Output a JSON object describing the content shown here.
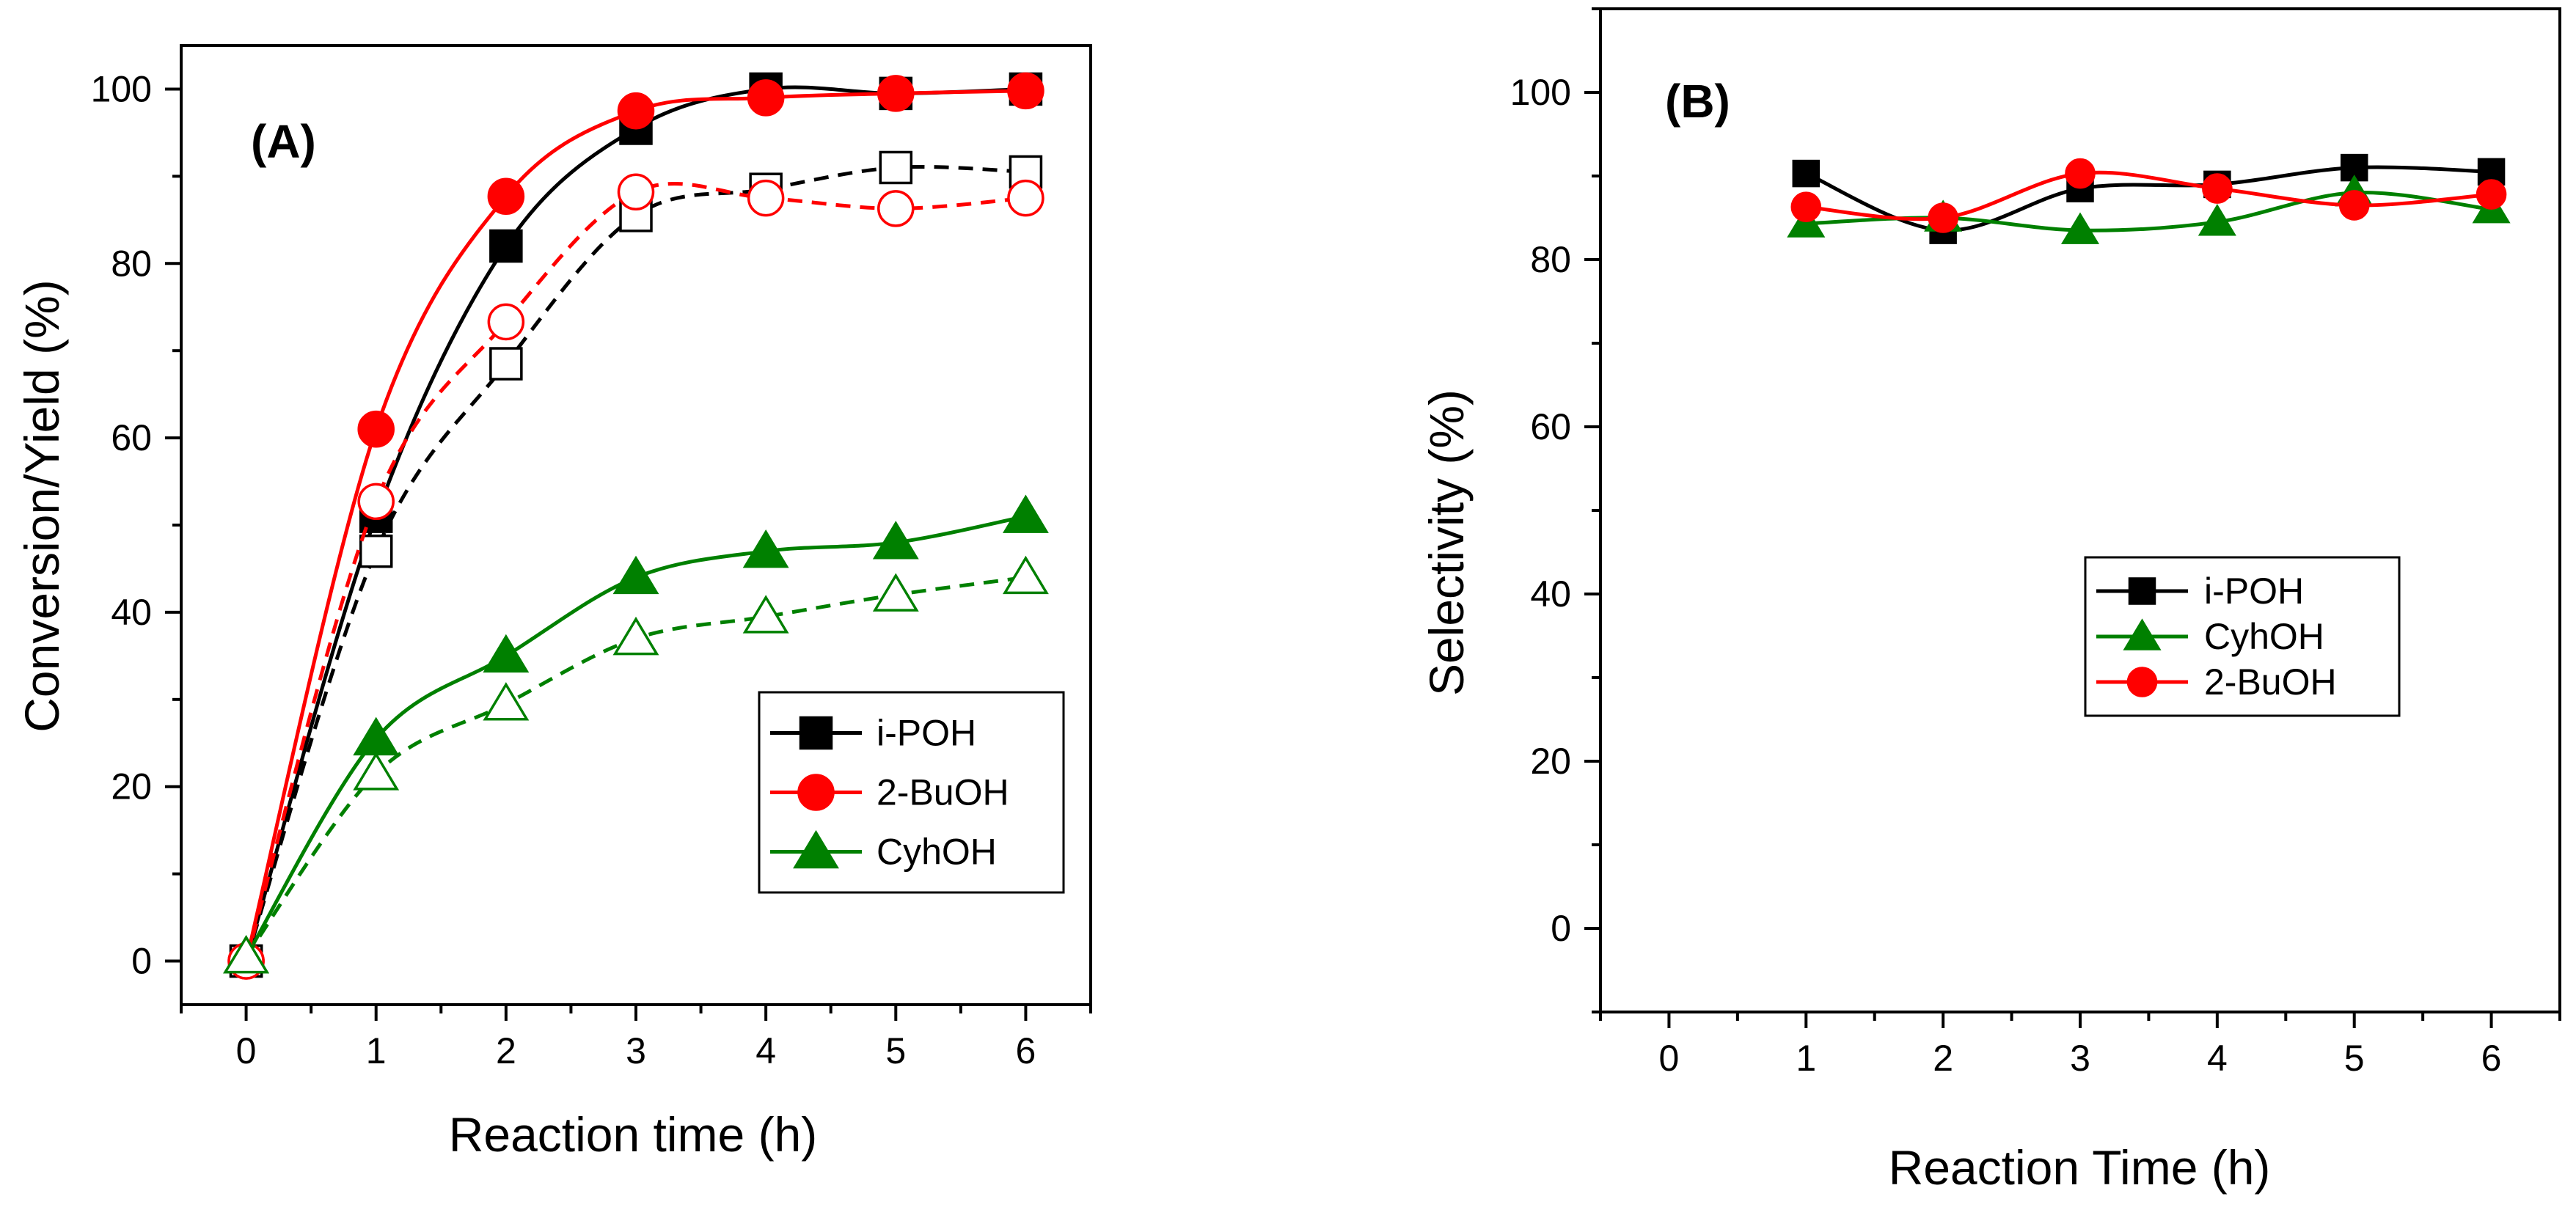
{
  "chart_data": [
    {
      "type": "line",
      "panel_label": "(A)",
      "title": "",
      "xlabel": "Reaction time (h)",
      "ylabel": "Conversion/Yield (%)",
      "xlim": [
        -0.5,
        6.5
      ],
      "ylim": [
        -5,
        105
      ],
      "xticks": [
        "0",
        "1",
        "2",
        "3",
        "4",
        "5",
        "6"
      ],
      "yticks": [
        "0",
        "20",
        "40",
        "60",
        "80",
        "100"
      ],
      "grid": false,
      "legend_position": "lower-right",
      "x": [
        0,
        1,
        2,
        3,
        4,
        5,
        6
      ],
      "series": [
        {
          "name": "i-POH",
          "legend": true,
          "color": "#000000",
          "marker": "square",
          "filled": true,
          "dash": false,
          "values": [
            0,
            51,
            82,
            95.5,
            100,
            99.5,
            100
          ]
        },
        {
          "name": "2-BuOH",
          "legend": true,
          "color": "#ff0000",
          "marker": "circle",
          "filled": true,
          "dash": false,
          "values": [
            0,
            61,
            87.7,
            97.5,
            99,
            99.5,
            99.8
          ]
        },
        {
          "name": "CyhOH",
          "legend": true,
          "color": "#008000",
          "marker": "triangle",
          "filled": true,
          "dash": false,
          "values": [
            0.5,
            25.5,
            35,
            44,
            47,
            48,
            51
          ]
        },
        {
          "legend": false,
          "color": "#000000",
          "marker": "square",
          "filled": false,
          "dash": true,
          "values": [
            0,
            47,
            68.5,
            85.5,
            88.5,
            91,
            90.5
          ]
        },
        {
          "legend": false,
          "color": "#ff0000",
          "marker": "circle",
          "filled": false,
          "dash": true,
          "values": [
            0,
            52.7,
            73.3,
            88.2,
            87.5,
            86.3,
            87.5
          ]
        },
        {
          "legend": false,
          "color": "#008000",
          "marker": "triangle",
          "filled": false,
          "dash": true,
          "values": [
            0.5,
            21.5,
            29.5,
            37,
            39.5,
            42,
            44
          ]
        }
      ]
    },
    {
      "type": "line",
      "panel_label": "(B)",
      "title": "",
      "xlabel": "Reaction Time (h)",
      "ylabel": "Selectivity  (%)",
      "xlim": [
        -0.5,
        6.5
      ],
      "ylim": [
        -10,
        110
      ],
      "xticks": [
        "0",
        "1",
        "2",
        "3",
        "4",
        "5",
        "6"
      ],
      "yticks": [
        "0",
        "20",
        "40",
        "60",
        "80",
        "100"
      ],
      "grid": false,
      "legend_position": "center-right",
      "x": [
        1,
        2,
        3,
        4,
        5,
        6
      ],
      "series": [
        {
          "name": "i-POH",
          "legend": true,
          "color": "#000000",
          "marker": "square",
          "filled": true,
          "dash": false,
          "values": [
            90.3,
            83.5,
            88.5,
            89,
            91,
            90.5
          ]
        },
        {
          "name": "CyhOH",
          "legend": true,
          "color": "#008000",
          "marker": "triangle",
          "filled": true,
          "dash": false,
          "values": [
            84.3,
            85,
            83.5,
            84.5,
            88,
            86
          ]
        },
        {
          "name": "2-BuOH",
          "legend": true,
          "color": "#ff0000",
          "marker": "circle",
          "filled": true,
          "dash": false,
          "values": [
            86.3,
            85,
            90.3,
            88.5,
            86.5,
            87.8
          ]
        }
      ]
    }
  ]
}
